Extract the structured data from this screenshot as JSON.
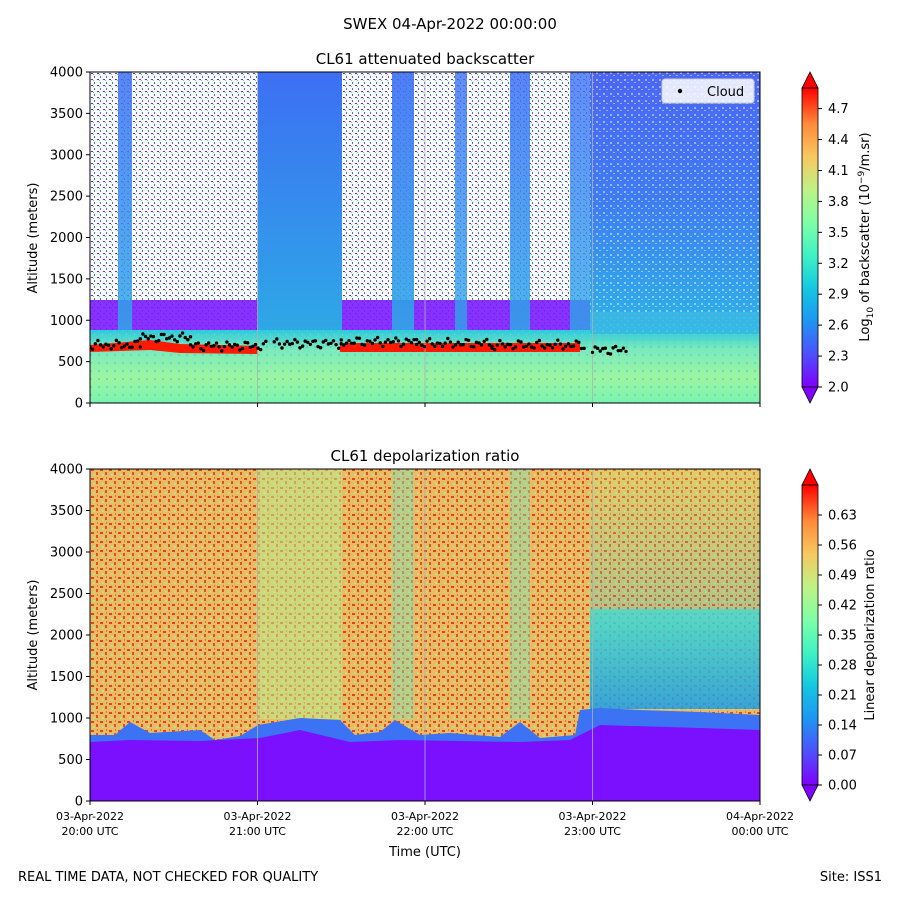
{
  "figure": {
    "suptitle": "SWEX 04-Apr-2022 00:00:00",
    "footer_left": "REAL TIME DATA, NOT CHECKED FOR QUALITY",
    "footer_right": "Site: ISS1"
  },
  "chart_data": [
    {
      "type": "heatmap",
      "title": "CL61 attenuated backscatter",
      "ylabel": "Altitude (meters)",
      "ylim": [
        0,
        4000
      ],
      "yticks": [
        "0",
        "500",
        "1000",
        "1500",
        "2000",
        "2500",
        "3000",
        "3500",
        "4000"
      ],
      "xlim_hours": [
        0,
        4
      ],
      "x_gridlines": [
        1,
        2,
        3
      ],
      "legend": {
        "label": "Cloud",
        "location": "top-right"
      },
      "colorbar": {
        "label_prefix": "Log",
        "label_sub": "10",
        "label_mid": " of backscatter (10",
        "label_sup": "−9",
        "label_end": "/m.sr)",
        "range": [
          2.0,
          4.9
        ],
        "ticks": [
          "2.0",
          "2.3",
          "2.6",
          "2.9",
          "3.2",
          "3.5",
          "3.8",
          "4.1",
          "4.4",
          "4.7"
        ]
      },
      "cloud_base_segments": [
        {
          "start_hour": 0.0,
          "end_hour": 0.3,
          "altitude_m": 700
        },
        {
          "start_hour": 0.3,
          "end_hour": 0.6,
          "altitude_m": 790
        },
        {
          "start_hour": 0.6,
          "end_hour": 1.05,
          "altitude_m": 690
        },
        {
          "start_hour": 1.1,
          "end_hour": 1.5,
          "altitude_m": 720
        },
        {
          "start_hour": 1.5,
          "end_hour": 1.95,
          "altitude_m": 740
        },
        {
          "start_hour": 1.95,
          "end_hour": 2.4,
          "altitude_m": 720
        },
        {
          "start_hour": 2.4,
          "end_hour": 2.95,
          "altitude_m": 700
        },
        {
          "start_hour": 3.0,
          "end_hour": 3.2,
          "altitude_m": 640
        }
      ]
    },
    {
      "type": "heatmap",
      "title": "CL61 depolarization ratio",
      "xlabel": "Time (UTC)",
      "ylabel": "Altitude (meters)",
      "ylim": [
        0,
        4000
      ],
      "yticks": [
        "0",
        "500",
        "1000",
        "1500",
        "2000",
        "2500",
        "3000",
        "3500",
        "4000"
      ],
      "xlim_hours": [
        0,
        4
      ],
      "x_gridlines": [
        1,
        2,
        3
      ],
      "xticks": [
        {
          "date": "03-Apr-2022",
          "time": "20:00 UTC"
        },
        {
          "date": "03-Apr-2022",
          "time": "21:00 UTC"
        },
        {
          "date": "03-Apr-2022",
          "time": "22:00 UTC"
        },
        {
          "date": "03-Apr-2022",
          "time": "23:00 UTC"
        },
        {
          "date": "04-Apr-2022",
          "time": "00:00 UTC"
        }
      ],
      "colorbar": {
        "label": "Linear depolarization ratio",
        "range": [
          0.0,
          0.7
        ],
        "ticks": [
          "0.00",
          "0.07",
          "0.14",
          "0.21",
          "0.28",
          "0.35",
          "0.42",
          "0.49",
          "0.56",
          "0.63"
        ]
      }
    }
  ]
}
